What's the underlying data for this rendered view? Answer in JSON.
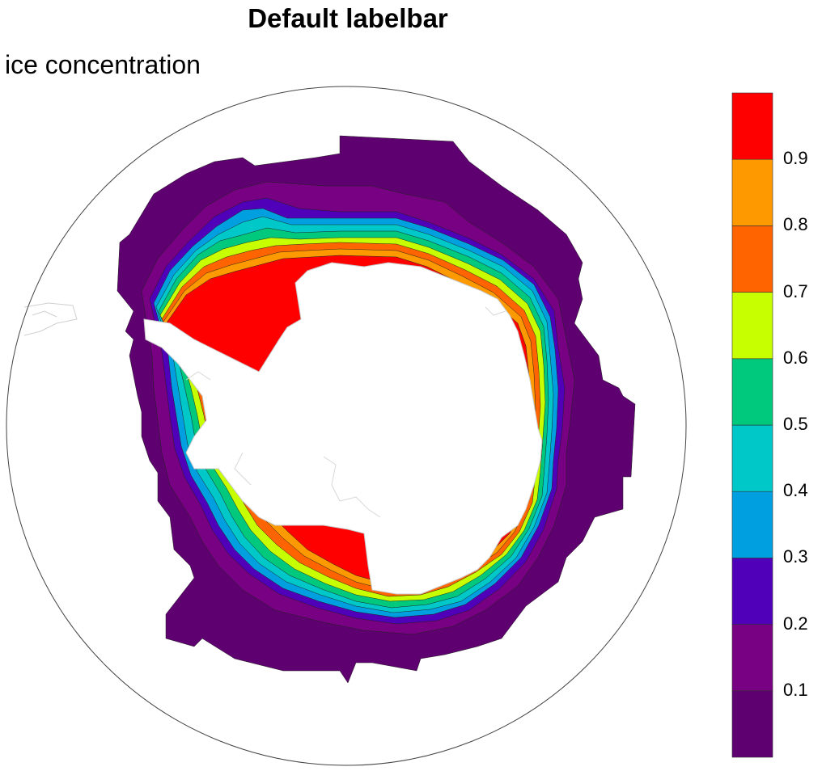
{
  "title": "Default labelbar",
  "subtitle": "ice concentration",
  "labelbar": {
    "labels": [
      "0.1",
      "0.2",
      "0.3",
      "0.4",
      "0.5",
      "0.6",
      "0.7",
      "0.8",
      "0.9"
    ],
    "colors": [
      "#5e0070",
      "#780082",
      "#5000b8",
      "#00a0e0",
      "#00c8c8",
      "#00c87c",
      "#c8ff00",
      "#ff6400",
      "#ff9900",
      "#ff0000"
    ]
  },
  "map": {
    "projection": "polar-stereographic-south",
    "variable": "ice concentration"
  }
}
